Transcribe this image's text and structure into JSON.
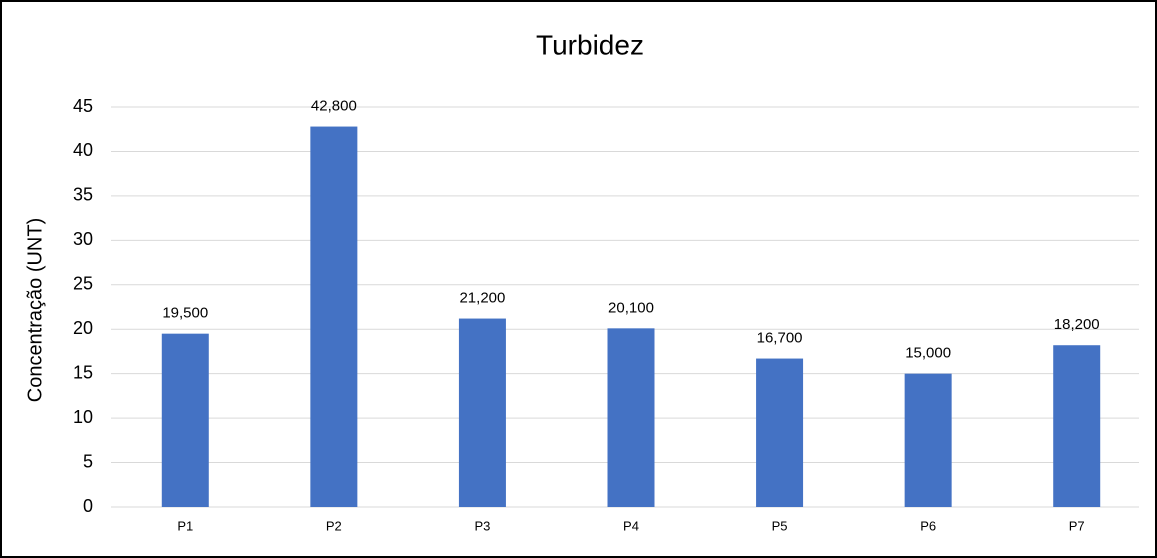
{
  "chart_data": {
    "type": "bar",
    "title": "Turbidez",
    "y_label": "Concentração (UNT)",
    "categories": [
      "P1",
      "P2",
      "P3",
      "P4",
      "P5",
      "P6",
      "P7"
    ],
    "values": [
      19.5,
      42.8,
      21.2,
      20.1,
      16.7,
      15.0,
      18.2
    ],
    "value_labels": [
      "19,500",
      "42,800",
      "21,200",
      "20,100",
      "16,700",
      "15,000",
      "18,200"
    ],
    "color": "#4472c4",
    "ylim": [
      0,
      45
    ],
    "yticks": [
      0,
      5,
      10,
      15,
      20,
      25,
      30,
      35,
      40,
      45
    ],
    "grid": true
  }
}
